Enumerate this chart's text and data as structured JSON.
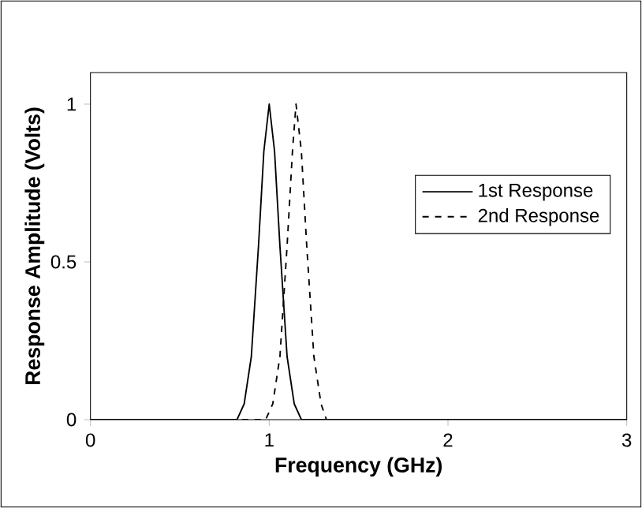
{
  "chart_data": {
    "type": "line",
    "xlabel": "Frequency (GHz)",
    "ylabel": "Response Amplitude (Volts)",
    "xlim": [
      0,
      3
    ],
    "xticks": [
      0,
      1,
      2,
      3
    ],
    "ylim": [
      0,
      1.1
    ],
    "yticks": [
      0,
      0.5,
      1
    ],
    "legend": "right",
    "marker": "none",
    "series": [
      {
        "name": "1st Response",
        "color": "#000000",
        "line_style": "solid",
        "x": [
          0,
          0.82,
          0.86,
          0.9,
          0.94,
          0.97,
          1.0,
          1.03,
          1.06,
          1.1,
          1.14,
          1.18,
          3
        ],
        "values": [
          0,
          0,
          0.05,
          0.2,
          0.55,
          0.85,
          1.0,
          0.85,
          0.55,
          0.2,
          0.05,
          0,
          0
        ]
      },
      {
        "name": "2nd Response",
        "color": "#000000",
        "line_style": "dashed",
        "x": [
          0,
          0.98,
          1.02,
          1.06,
          1.1,
          1.13,
          1.15,
          1.18,
          1.21,
          1.25,
          1.29,
          1.32,
          3
        ],
        "values": [
          0,
          0,
          0.05,
          0.2,
          0.55,
          0.85,
          1.0,
          0.85,
          0.55,
          0.2,
          0.05,
          0,
          0
        ]
      }
    ]
  }
}
